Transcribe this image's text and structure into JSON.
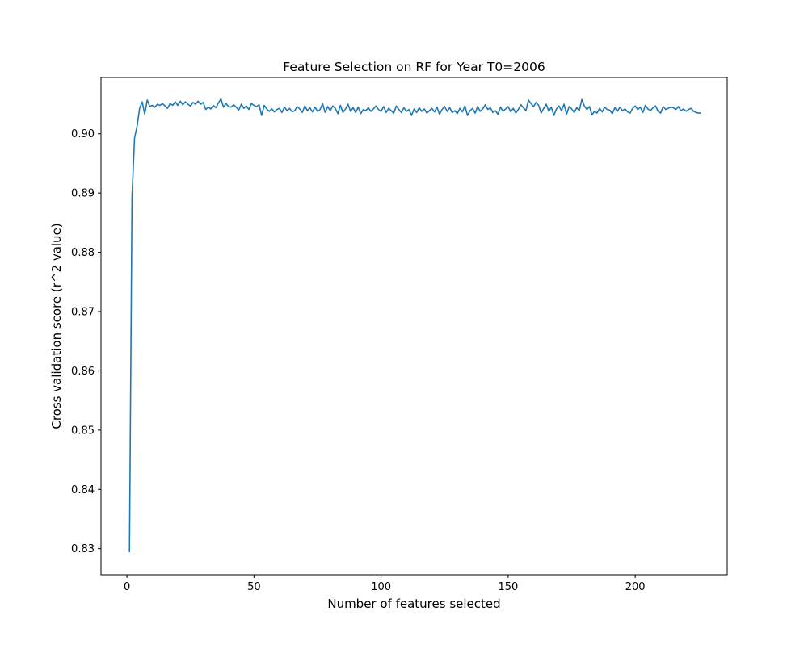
{
  "chart_data": {
    "type": "line",
    "title": "Feature Selection on RF for Year T0=2006",
    "xlabel": "Number of features selected",
    "ylabel": "Cross validation score (r^2 value)",
    "xlim": [
      -10.2,
      236.2
    ],
    "ylim": [
      0.8256,
      0.9095
    ],
    "xticks": [
      0,
      50,
      100,
      150,
      200
    ],
    "xtick_labels": [
      "0",
      "50",
      "100",
      "150",
      "200"
    ],
    "yticks": [
      0.83,
      0.84,
      0.85,
      0.86,
      0.87,
      0.88,
      0.89,
      0.9
    ],
    "ytick_labels": [
      "0.83",
      "0.84",
      "0.85",
      "0.86",
      "0.87",
      "0.88",
      "0.89",
      "0.90"
    ],
    "grid": false,
    "legend": "none",
    "line_color": "#1f77b4",
    "series": [
      {
        "x_start": 1,
        "x_step": 1,
        "values": [
          0.8294,
          0.8893,
          0.8993,
          0.9013,
          0.9043,
          0.9054,
          0.9033,
          0.9057,
          0.9046,
          0.9048,
          0.9045,
          0.905,
          0.9048,
          0.9051,
          0.9047,
          0.9043,
          0.9051,
          0.9048,
          0.9054,
          0.9048,
          0.9055,
          0.9049,
          0.9054,
          0.905,
          0.9047,
          0.9053,
          0.905,
          0.9055,
          0.905,
          0.9053,
          0.9041,
          0.9045,
          0.9042,
          0.9048,
          0.9044,
          0.9052,
          0.9059,
          0.9045,
          0.9051,
          0.9046,
          0.9045,
          0.9049,
          0.9045,
          0.904,
          0.905,
          0.9043,
          0.9047,
          0.9041,
          0.9051,
          0.9048,
          0.9046,
          0.9049,
          0.9031,
          0.9048,
          0.9042,
          0.9038,
          0.9042,
          0.9037,
          0.9041,
          0.9043,
          0.9036,
          0.9045,
          0.9039,
          0.9043,
          0.9037,
          0.9039,
          0.9046,
          0.9042,
          0.9036,
          0.9047,
          0.9039,
          0.9044,
          0.9037,
          0.9045,
          0.9038,
          0.9041,
          0.9051,
          0.9036,
          0.9046,
          0.9039,
          0.9047,
          0.9043,
          0.9034,
          0.9048,
          0.9036,
          0.9042,
          0.905,
          0.9038,
          0.9044,
          0.9036,
          0.9045,
          0.9034,
          0.9041,
          0.9039,
          0.9044,
          0.9038,
          0.9042,
          0.9047,
          0.9041,
          0.9038,
          0.9046,
          0.9036,
          0.9043,
          0.9039,
          0.9035,
          0.9047,
          0.9041,
          0.9036,
          0.9044,
          0.9038,
          0.9041,
          0.9031,
          0.9042,
          0.9036,
          0.9044,
          0.9038,
          0.9042,
          0.9035,
          0.9039,
          0.9043,
          0.9037,
          0.9045,
          0.9033,
          0.9041,
          0.9046,
          0.9038,
          0.9044,
          0.9036,
          0.9039,
          0.9034,
          0.9043,
          0.9037,
          0.9047,
          0.9031,
          0.9039,
          0.9043,
          0.9035,
          0.9046,
          0.9038,
          0.9042,
          0.9049,
          0.9041,
          0.9044,
          0.9036,
          0.9039,
          0.9033,
          0.9045,
          0.9038,
          0.9042,
          0.9046,
          0.9037,
          0.9043,
          0.9035,
          0.9041,
          0.9049,
          0.9044,
          0.9039,
          0.9057,
          0.9051,
          0.9046,
          0.9053,
          0.9048,
          0.9035,
          0.9043,
          0.905,
          0.9038,
          0.9045,
          0.9031,
          0.9042,
          0.9047,
          0.9039,
          0.905,
          0.9033,
          0.9046,
          0.9042,
          0.9036,
          0.9044,
          0.9039,
          0.9058,
          0.9047,
          0.9041,
          0.9046,
          0.9032,
          0.9038,
          0.9035,
          0.9043,
          0.9037,
          0.9045,
          0.9041,
          0.904,
          0.9034,
          0.9044,
          0.9038,
          0.9045,
          0.9039,
          0.9042,
          0.9037,
          0.9035,
          0.9043,
          0.9047,
          0.9041,
          0.9045,
          0.9036,
          0.9048,
          0.9042,
          0.9039,
          0.9044,
          0.9047,
          0.9038,
          0.9035,
          0.9046,
          0.9041,
          0.9043,
          0.9045,
          0.9044,
          0.9041,
          0.9046,
          0.9039,
          0.9042,
          0.9038,
          0.9041,
          0.9043,
          0.9038,
          0.9036,
          0.9035,
          0.9035
        ]
      }
    ]
  }
}
